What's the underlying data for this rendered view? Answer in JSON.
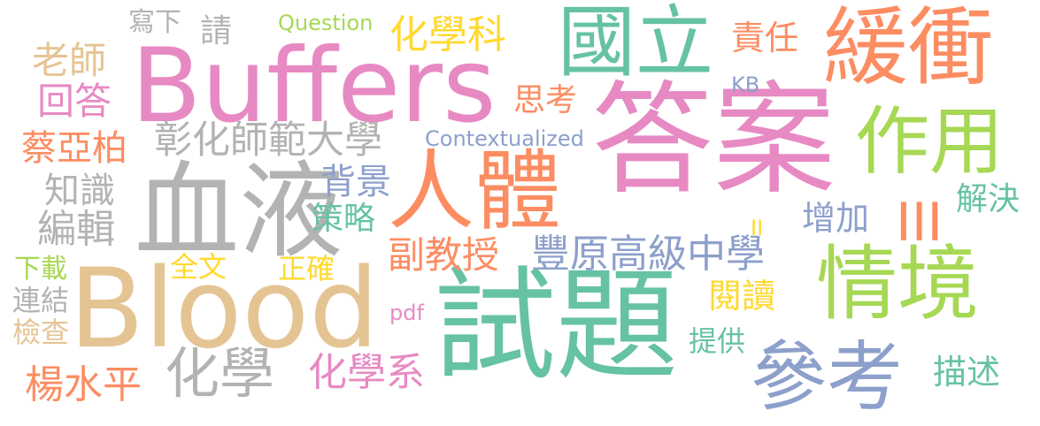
{
  "palette": {
    "pink": "#e78ac3",
    "green": "#66c2a5",
    "orange": "#fc8d62",
    "lime": "#a6d854",
    "gray": "#b3b3b3",
    "tan": "#e5c494",
    "yellow": "#ffd92f",
    "blue": "#8da0cb"
  },
  "words": {
    "buffers": "Buffers",
    "blood": "Blood",
    "answer": "答案",
    "test_question": "試題",
    "blood_cn": "血液",
    "human_body": "人體",
    "national": "國立",
    "buffer_cn": "緩衝",
    "effect": "作用",
    "context": "情境",
    "reference": "參考",
    "chemistry": "化學",
    "chemistry_dept": "化學系",
    "chemistry_subject": "化學科",
    "ncue": "彰化師範大學",
    "fengyuan_hs": "豐原高級中學",
    "assoc_prof": "副教授",
    "teacher": "老師",
    "answer_reply": "回答",
    "write_down": "寫下",
    "please": "請",
    "question": "Question",
    "contextualized": "Contextualized",
    "tsai": "蔡亞柏",
    "knowledge": "知識",
    "editor": "編輯",
    "background": "背景",
    "strategy": "策略",
    "think": "思考",
    "responsibility": "責任",
    "kb": "KB",
    "increase": "增加",
    "iii": "III",
    "ii": "II",
    "solve": "解決",
    "download": "下載",
    "fulltext": "全文",
    "correct": "正確",
    "link": "連結",
    "check": "檢查",
    "pdf": "pdf",
    "read": "閱讀",
    "provide": "提供",
    "yang": "楊水平",
    "describe": "描述"
  }
}
